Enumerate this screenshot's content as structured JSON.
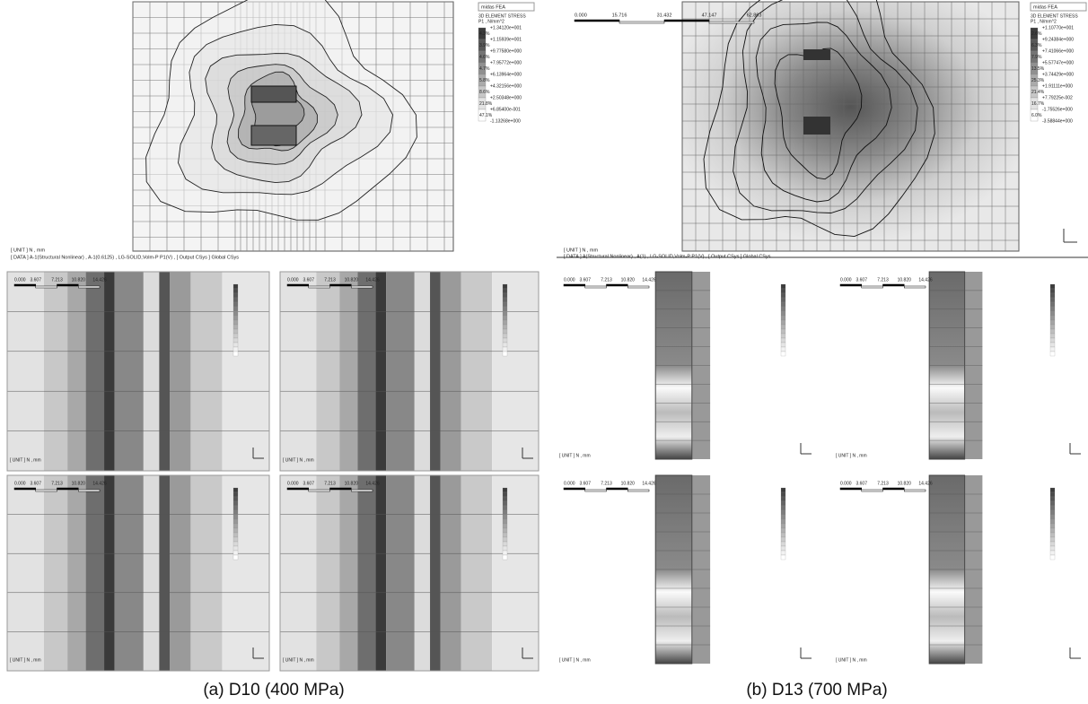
{
  "captions": [
    "(a)  D10  (400 MPa)",
    "(b)  D13  (700 MPa)"
  ],
  "main": [
    {
      "brand": "midas FEA",
      "legend_title": [
        "3D ELEMENT STRESS",
        "P1 , N/mm^2"
      ],
      "levels": [
        "+1.34120e+001",
        "+1.15939e+001",
        "+9.77580e+000",
        "+7.95772e+000",
        "+6.13964e+000",
        "+4.32156e+000",
        "+2.50348e+000",
        "+6.85400e-001",
        "-1.13268e+000"
      ],
      "percents": [
        "4.3%",
        "3.9%",
        "4.6%",
        "4.7%",
        "5.8%",
        "8.6%",
        "21.8%",
        "47.1%"
      ],
      "unit": "[ UNIT ] N , mm",
      "data": "[ DATA ] A-1(Structural Nonlinear) , A-1(0.6125) , LG-SOLID,Volm-P P1(V) , [ Output CSys ] Global CSys"
    },
    {
      "brand": "midas FEA",
      "legend_title": [
        "3D ELEMENT STRESS",
        "P1 , N/mm^2"
      ],
      "levels": [
        "+1.10770e+001",
        "+9.24384e+000",
        "+7.41066e+000",
        "+5.57747e+000",
        "+3.74429e+000",
        "+1.91111e+000",
        "+7.79225e-002",
        "-1.75526e+000",
        "-3.58844e+000"
      ],
      "percents": [
        "2.6%",
        "6.3%",
        "7.9%",
        "13.5%",
        "25.3%",
        "21.4%",
        "16.7%",
        "6.0%"
      ],
      "scale": [
        "0.000",
        "15.716",
        "31.432",
        "47.147",
        "62.863"
      ],
      "unit": "[ UNIT ] N , mm",
      "data": "[ DATA ] A(Structural Nonlinear) , A(1) , LG-SOLID,Volm-P P1(V) , [ Output CSys ] Global CSys"
    }
  ],
  "small": [
    {
      "scale": [
        "0.000",
        "3.607",
        "7.213",
        "10.820",
        "14.426"
      ],
      "unit": "[ UNIT ] N , mm"
    },
    {
      "scale": [
        "0.000",
        "3.607",
        "7.213",
        "10.820",
        "14.426"
      ],
      "unit": "[ UNIT ] N , mm"
    },
    {
      "scale": [
        "0.000",
        "3.607",
        "7.213",
        "10.820",
        "14.426"
      ],
      "unit": "[ UNIT ] N , mm"
    },
    {
      "scale": [
        "0.000",
        "3.607",
        "7.213",
        "10.820",
        "14.426"
      ],
      "unit": "[ UNIT ] N , mm"
    },
    {
      "scale": [
        "0.000",
        "3.607",
        "7.213",
        "10.820",
        "14.426"
      ],
      "unit": "[ UNIT ] N , mm"
    },
    {
      "scale": [
        "0.000",
        "3.607",
        "7.213",
        "10.820",
        "14.426"
      ],
      "unit": "[ UNIT ] N , mm"
    },
    {
      "scale": [
        "0.000",
        "3.607",
        "7.213",
        "10.820",
        "14.426"
      ],
      "unit": "[ UNIT ] N , mm"
    },
    {
      "scale": [
        "0.000",
        "3.607",
        "7.213",
        "10.820",
        "14.426"
      ],
      "unit": "[ UNIT ] N , mm"
    }
  ]
}
